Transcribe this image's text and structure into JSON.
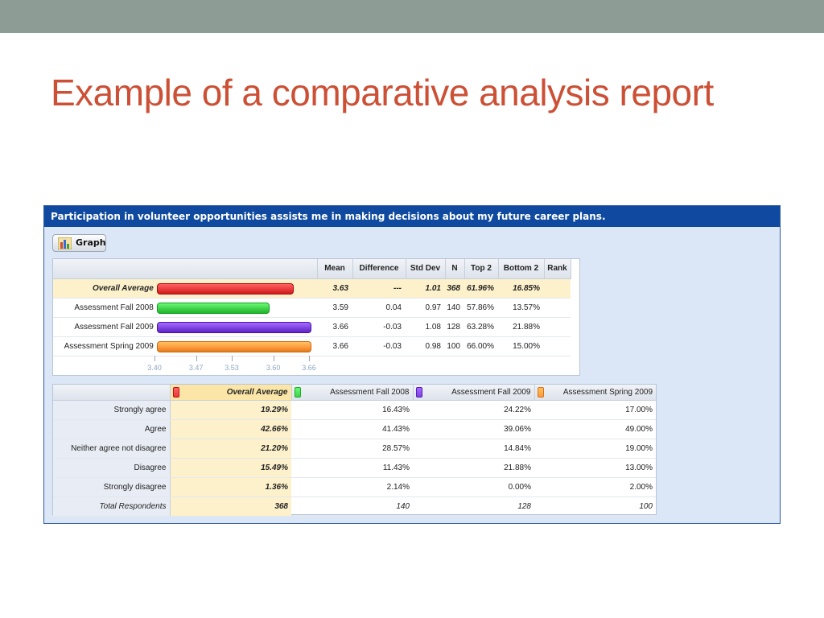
{
  "slide": {
    "title": "Example of a comparative analysis report"
  },
  "panel": {
    "header": "Participation in volunteer opportunities assists me in making decisions about my future career plans.",
    "graph_button_label": "Graph"
  },
  "summary_table": {
    "columns": [
      "Mean",
      "Difference",
      "Std Dev",
      "N",
      "Top 2",
      "Bottom 2",
      "Rank"
    ],
    "rows": [
      {
        "label": "Overall Average",
        "mean": "3.63",
        "difference": "---",
        "std_dev": "1.01",
        "n": "368",
        "top2": "61.96%",
        "bottom2": "16.85%",
        "rank": "",
        "value": 3.63,
        "color": "#e8393b"
      },
      {
        "label": "Assessment Fall 2008",
        "mean": "3.59",
        "difference": "0.04",
        "std_dev": "0.97",
        "n": "140",
        "top2": "57.86%",
        "bottom2": "13.57%",
        "rank": "",
        "value": 3.59,
        "color": "#3fd24a"
      },
      {
        "label": "Assessment Fall 2009",
        "mean": "3.66",
        "difference": "-0.03",
        "std_dev": "1.08",
        "n": "128",
        "top2": "63.28%",
        "bottom2": "21.88%",
        "rank": "",
        "value": 3.66,
        "color": "#7d43e0"
      },
      {
        "label": "Assessment Spring 2009",
        "mean": "3.66",
        "difference": "-0.03",
        "std_dev": "0.98",
        "n": "100",
        "top2": "66.00%",
        "bottom2": "15.00%",
        "rank": "",
        "value": 3.66,
        "color": "#ff9a3c"
      }
    ],
    "axis_ticks": [
      "3.40",
      "3.47",
      "3.53",
      "3.60",
      "3.66"
    ]
  },
  "distribution_table": {
    "columns": [
      {
        "label": "Overall Average",
        "color": "#e8393b"
      },
      {
        "label": "Assessment Fall 2008",
        "color": "#3fd24a"
      },
      {
        "label": "Assessment Fall 2009",
        "color": "#7d43e0"
      },
      {
        "label": "Assessment Spring 2009",
        "color": "#ff9a3c"
      }
    ],
    "rows": [
      {
        "label": "Strongly agree",
        "values": [
          "19.29%",
          "16.43%",
          "24.22%",
          "17.00%"
        ]
      },
      {
        "label": "Agree",
        "values": [
          "42.66%",
          "41.43%",
          "39.06%",
          "49.00%"
        ]
      },
      {
        "label": "Neither agree not disagree",
        "values": [
          "21.20%",
          "28.57%",
          "14.84%",
          "19.00%"
        ]
      },
      {
        "label": "Disagree",
        "values": [
          "15.49%",
          "11.43%",
          "21.88%",
          "13.00%"
        ]
      },
      {
        "label": "Strongly disagree",
        "values": [
          "1.36%",
          "2.14%",
          "0.00%",
          "2.00%"
        ]
      },
      {
        "label": "Total Respondents",
        "values": [
          "368",
          "140",
          "128",
          "100"
        ]
      }
    ]
  }
}
